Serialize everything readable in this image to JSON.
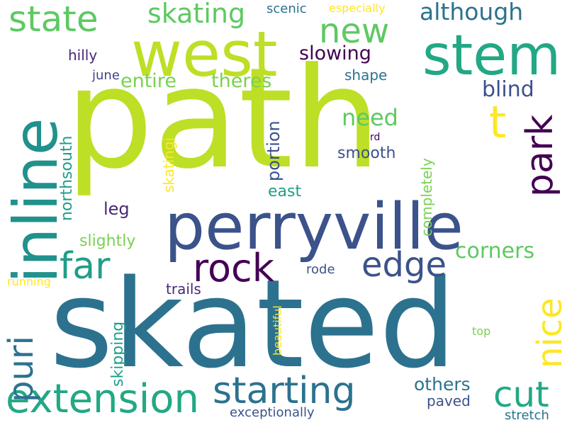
{
  "words": {
    "path": "path",
    "skated": "skated",
    "perryville": "perryville",
    "west": "west",
    "stem": "stem",
    "inline": "inline",
    "t": "t",
    "state": "state",
    "skating": "skating",
    "new": "new",
    "although": "although",
    "scenic": "scenic",
    "especially": "especially",
    "hilly": "hilly",
    "slowing": "slowing",
    "june": "june",
    "shape": "shape",
    "entire": "entire",
    "theres": "theres",
    "blind": "blind",
    "park": "park",
    "need": "need",
    "rd": "rd",
    "smooth": "smooth",
    "portion": "portion",
    "skatingi": "skatingi",
    "completely": "completely",
    "northsouth": "northsouth",
    "east": "east",
    "leg": "leg",
    "far": "far",
    "rock": "rock",
    "edge": "edge",
    "slightly": "slightly",
    "corners": "corners",
    "puri": "puri",
    "running": "running",
    "rode": "rode",
    "nice": "nice",
    "trails": "trails",
    "skipping": "skipping",
    "beautiful": "beautiful",
    "top": "top",
    "extension": "extension",
    "starting": "starting",
    "others": "others",
    "cut": "cut",
    "paved": "paved",
    "exceptionally": "exceptionally",
    "stretch": "stretch"
  }
}
